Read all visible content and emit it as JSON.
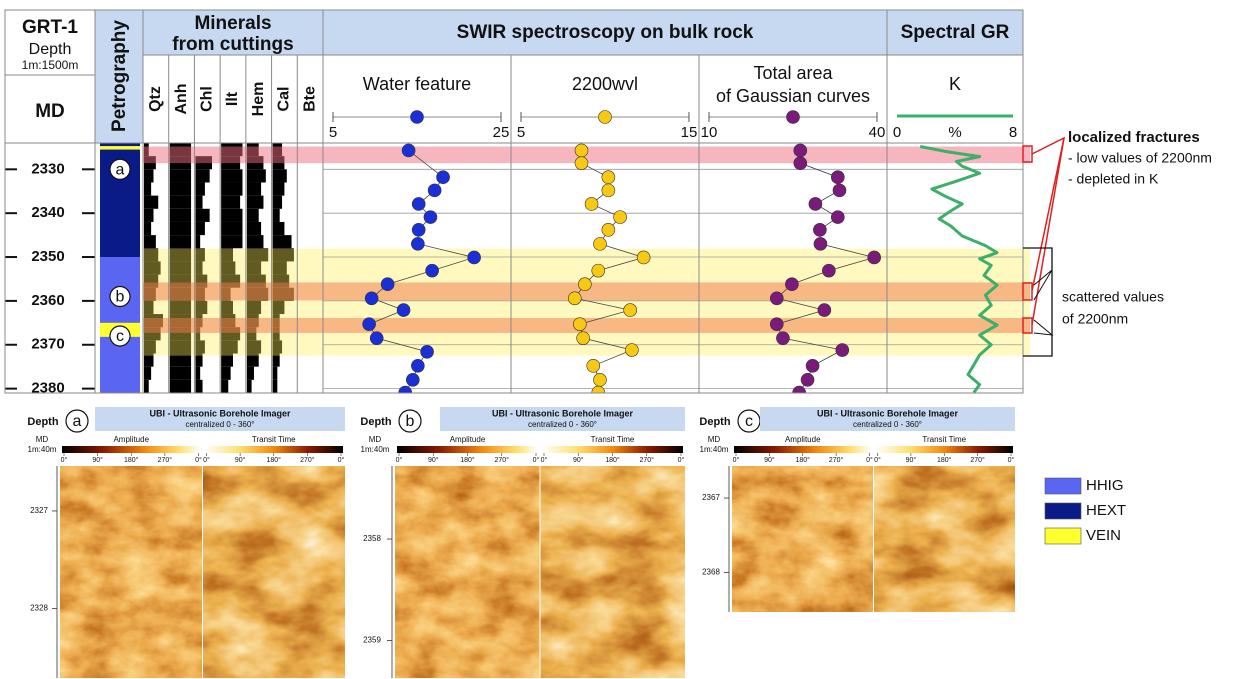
{
  "header": {
    "well": "GRT-1",
    "depth_title": "Depth",
    "depth_scale": "1m:1500m",
    "md": "MD",
    "petrography": "Petrography",
    "minerals_title": [
      "Minerals",
      "from cuttings"
    ],
    "swir_title": "SWIR spectroscopy on bulk rock",
    "gr_title": "Spectral GR"
  },
  "depth_axis": {
    "ylim": [
      2324,
      2381
    ],
    "yticks": [
      2330,
      2340,
      2350,
      2360,
      2370,
      2380
    ],
    "grid": true
  },
  "petrography": {
    "intervals": [
      {
        "top": 2324,
        "bottom": 2350,
        "color": "#0a1a86"
      },
      {
        "top": 2350,
        "bottom": 2381,
        "color": "#5a66f2"
      },
      {
        "top": 2324.7,
        "bottom": 2325.5,
        "color": "#ffff2e"
      },
      {
        "top": 2365.0,
        "bottom": 2368.2,
        "color": "#ffff2e"
      }
    ],
    "zones": [
      {
        "label": "a",
        "depth": 2330
      },
      {
        "label": "b",
        "depth": 2359
      },
      {
        "label": "c",
        "depth": 2368
      }
    ]
  },
  "minerals": {
    "boundaries": [
      2324,
      2327,
      2330,
      2333,
      2336,
      2339,
      2342,
      2345,
      2348,
      2351,
      2354,
      2357,
      2360,
      2363,
      2366,
      2369,
      2372,
      2375,
      2378,
      2381
    ],
    "columns": [
      {
        "name": "Qtz",
        "values": [
          0.2,
          0.5,
          0.4,
          0.3,
          0.6,
          0.4,
          0.3,
          0.5,
          0.6,
          0.7,
          0.6,
          0.5,
          0.4,
          0.8,
          0.7,
          0.5,
          0.4,
          0.3,
          0.2
        ]
      },
      {
        "name": "Anh",
        "values": [
          0.9,
          0.9,
          0.9,
          0.9,
          0.9,
          0.9,
          0.9,
          0.9,
          0.9,
          0.9,
          0.9,
          0.9,
          0.9,
          0.9,
          0.9,
          0.9,
          0.9,
          0.9,
          0.9
        ]
      },
      {
        "name": "Chl",
        "values": [
          0,
          0.7,
          0.6,
          0.4,
          0.3,
          0.6,
          0.4,
          0.2,
          0.4,
          0.3,
          0.5,
          0.4,
          0.5,
          0.3,
          0.2,
          0.4,
          0.3,
          0.2,
          0.3
        ]
      },
      {
        "name": "Ilt",
        "values": [
          0.9,
          0.8,
          0.9,
          0.9,
          0.8,
          0.9,
          0.9,
          0.9,
          0.5,
          0.6,
          0.8,
          0.4,
          0.5,
          0.6,
          0.8,
          0.7,
          0.5,
          0.4,
          0.3
        ]
      },
      {
        "name": "Hem",
        "values": [
          0.5,
          0.7,
          0.8,
          0.6,
          0.7,
          0.5,
          0.6,
          0.7,
          0.9,
          0.6,
          0.8,
          0.9,
          0.6,
          0.5,
          0.4,
          0.6,
          0.5,
          0.3,
          0.2
        ]
      },
      {
        "name": "Cal",
        "values": [
          0.4,
          0.5,
          0.6,
          0.5,
          0.4,
          0.3,
          0.5,
          0.8,
          0.9,
          0.6,
          0.7,
          0.9,
          0.5,
          0.3,
          0.3,
          0.4,
          0.3,
          0.2,
          0.2
        ]
      },
      {
        "name": "Bte",
        "values": [
          0,
          0,
          0,
          0,
          0,
          0,
          0,
          0,
          0,
          0,
          0,
          0,
          0,
          0,
          0,
          0,
          0,
          0,
          0
        ]
      }
    ]
  },
  "chart_data": [
    {
      "type": "scatter",
      "title": "Water feature",
      "color": "#1a2fd6",
      "x": [
        14.0,
        18.1,
        17.1,
        15.2,
        16.6,
        15.2,
        15.1,
        21.8,
        16.8,
        11.5,
        9.6,
        13.4,
        9.3,
        10.2,
        16.2,
        15.1,
        14.5,
        13.6
      ],
      "y": [
        2325.7,
        2331.8,
        2334.8,
        2337.9,
        2340.9,
        2343.8,
        2347.0,
        2350.1,
        2353.1,
        2356.2,
        2359.4,
        2362.1,
        2365.3,
        2368.5,
        2371.6,
        2374.8,
        2378.0,
        2380.9
      ],
      "xlim": [
        5,
        25
      ],
      "xticks": [
        5,
        25
      ]
    },
    {
      "type": "scatter",
      "title": "2200wvl",
      "color": "#f7c912",
      "x": [
        8.6,
        8.6,
        10.2,
        10.2,
        9.2,
        10.9,
        10.2,
        9.7,
        12.3,
        9.6,
        8.8,
        8.2,
        11.5,
        8.5,
        8.7,
        11.6,
        9.3,
        9.7,
        9.6
      ],
      "y": [
        2325.7,
        2328.6,
        2331.8,
        2334.8,
        2337.9,
        2340.9,
        2343.8,
        2347.0,
        2350.1,
        2353.1,
        2356.2,
        2359.4,
        2362.1,
        2365.3,
        2368.5,
        2371.2,
        2374.8,
        2378.0,
        2380.9
      ],
      "xlim": [
        5,
        15
      ],
      "xticks": [
        5,
        15
      ]
    },
    {
      "type": "scatter",
      "title": [
        "Total area",
        "of Gaussian curves"
      ],
      "color": "#7a1a7a",
      "x": [
        26.3,
        26.3,
        33.0,
        33.3,
        29.0,
        33.0,
        29.8,
        29.9,
        39.5,
        31.4,
        24.8,
        22.1,
        30.6,
        22.1,
        23.2,
        33.8,
        28.5,
        27.6,
        26.1
      ],
      "y": [
        2325.7,
        2328.6,
        2331.8,
        2334.8,
        2337.9,
        2340.9,
        2343.8,
        2347.0,
        2350.1,
        2353.1,
        2356.2,
        2359.4,
        2362.1,
        2365.3,
        2368.5,
        2371.2,
        2374.8,
        2378.0,
        2380.9
      ],
      "xlim": [
        10,
        40
      ],
      "xticks": [
        10,
        40
      ]
    },
    {
      "type": "line",
      "title": "K",
      "unit": "%",
      "color": "#3caf6a",
      "x": [
        1.6,
        3.3,
        5.7,
        4.1,
        4.5,
        5.7,
        4.1,
        2.4,
        3.3,
        4.5,
        3.7,
        2.9,
        3.7,
        4.5,
        6.1,
        6.9,
        5.7,
        6.5,
        6.0,
        6.9,
        6.1,
        6.5,
        5.7,
        6.9,
        5.7,
        6.5,
        5.7,
        5.3,
        4.9,
        5.7,
        5.3
      ],
      "y": [
        2324.8,
        2325.9,
        2327.1,
        2328.2,
        2329.3,
        2330.9,
        2332.7,
        2334.5,
        2336.1,
        2337.9,
        2339.5,
        2341.3,
        2342.9,
        2345.2,
        2347.4,
        2349.0,
        2350.4,
        2351.9,
        2354.2,
        2356.4,
        2358.7,
        2361.0,
        2363.3,
        2365.5,
        2367.8,
        2370.0,
        2372.3,
        2374.6,
        2376.8,
        2379.1,
        2380.9
      ],
      "xlim": [
        0,
        8
      ],
      "xticks": [
        0,
        8
      ]
    }
  ],
  "highlights": [
    {
      "top": 2348.1,
      "bottom": 2372.5,
      "color": "rgba(255,238,90,0.38)"
    },
    {
      "top": 2324.8,
      "bottom": 2328.6,
      "color": "rgba(240,110,125,0.5)"
    },
    {
      "top": 2355.8,
      "bottom": 2359.9,
      "color": "rgba(240,120,70,0.5)"
    },
    {
      "top": 2363.9,
      "bottom": 2367.3,
      "color": "rgba(240,120,70,0.5)"
    }
  ],
  "annotations": {
    "fractures": {
      "title": "localized fractures",
      "lines": [
        "- low values of 2200nm",
        "- depleted in K"
      ]
    },
    "scattered": [
      "scattered values",
      "of 2200nm"
    ]
  },
  "ubi": {
    "title": "UBI - Ultrasonic Borehole Imager",
    "subtitle": "centralized 0 - 360°",
    "depth": "Depth",
    "md": "MD",
    "scale": "1m:40m",
    "amplitude": "Amplitude",
    "transit": "Transit Time",
    "degree_ticks": [
      {
        "value": 0,
        "label": "0°"
      },
      {
        "value": 90,
        "label": "90°"
      },
      {
        "value": 180,
        "label": "180°"
      },
      {
        "value": 270,
        "label": "270°"
      },
      {
        "value": 360,
        "label": "0°"
      }
    ],
    "degree_lim": [
      0,
      360
    ],
    "panels": [
      {
        "label": "a",
        "ylim": [
          2326.54,
          2328.71
        ],
        "yticks": [
          2327,
          2328
        ]
      },
      {
        "label": "b",
        "ylim": [
          2357.28,
          2359.37
        ],
        "yticks": [
          2358,
          2359
        ]
      },
      {
        "label": "c",
        "ylim": [
          2366.57,
          2368.53
        ],
        "yticks": [
          2367,
          2368
        ]
      }
    ]
  },
  "legend": [
    {
      "name": "HHIG",
      "color": "#5a66f2"
    },
    {
      "name": "HEXT",
      "color": "#0a1a86"
    },
    {
      "name": "VEIN",
      "color": "#ffff2e"
    }
  ]
}
